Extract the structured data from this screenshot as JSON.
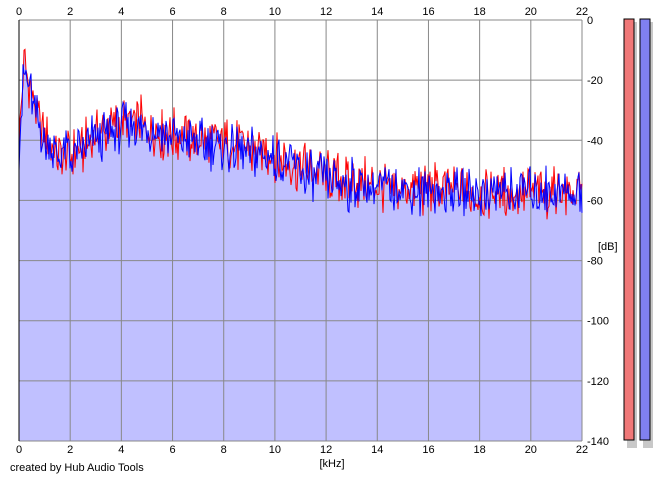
{
  "credit": "created by Hub Audio Tools",
  "colors": {
    "fill": "#c0c0ff",
    "channel_left": "#ff0000",
    "channel_right": "#0000ff",
    "grid": "#888888",
    "meter_left": "#f07878",
    "meter_right": "#8080f0",
    "meter_shadow": "#c8c8c8"
  },
  "chart_data": {
    "type": "area",
    "title": "",
    "xlabel": "[kHz]",
    "ylabel": "[dB]",
    "xlim": [
      0,
      22
    ],
    "ylim": [
      -140,
      0
    ],
    "x_ticks": [
      "0",
      "2",
      "4",
      "6",
      "8",
      "10",
      "12",
      "14",
      "16",
      "18",
      "20",
      "22"
    ],
    "y_ticks": [
      "0",
      "-20",
      "-40",
      "-60",
      "-80",
      "-100",
      "-120",
      "-140"
    ],
    "grid": true,
    "legend": "none",
    "series": [
      {
        "x": [
          0,
          0.2,
          0.4,
          0.6,
          0.8,
          1.0,
          1.5,
          2.0,
          2.5,
          3.0,
          3.5,
          4.0,
          4.5,
          5.0,
          5.5,
          6.0,
          7.0,
          8.0,
          9.0,
          10.0,
          11.0,
          12.0,
          13.0,
          14.0,
          15.0,
          16.0,
          17.0,
          18.0,
          19.0,
          20.0,
          21.0,
          22.0
        ],
        "values": [
          -40,
          -15,
          -20,
          -28,
          -35,
          -40,
          -44,
          -45,
          -43,
          -38,
          -36,
          -35,
          -34,
          -35,
          -38,
          -38,
          -40,
          -41,
          -43,
          -45,
          -49,
          -52,
          -54,
          -55,
          -56,
          -56,
          -57,
          -57,
          -57,
          -57,
          -57,
          -58
        ]
      },
      {
        "x": [
          0,
          0.2,
          0.4,
          0.6,
          0.8,
          1.0,
          1.5,
          2.0,
          2.5,
          3.0,
          3.5,
          4.0,
          4.5,
          5.0,
          5.5,
          6.0,
          7.0,
          8.0,
          9.0,
          10.0,
          11.0,
          12.0,
          13.0,
          14.0,
          15.0,
          16.0,
          17.0,
          18.0,
          19.0,
          20.0,
          21.0,
          22.0
        ],
        "values": [
          -42,
          -16,
          -22,
          -30,
          -36,
          -41,
          -44,
          -45,
          -44,
          -39,
          -37,
          -36,
          -35,
          -36,
          -38,
          -39,
          -41,
          -42,
          -44,
          -46,
          -50,
          -53,
          -55,
          -56,
          -56,
          -57,
          -57,
          -57,
          -58,
          -57,
          -57,
          -58
        ]
      }
    ]
  },
  "meters": {
    "left_level": 0,
    "right_level": 0
  }
}
